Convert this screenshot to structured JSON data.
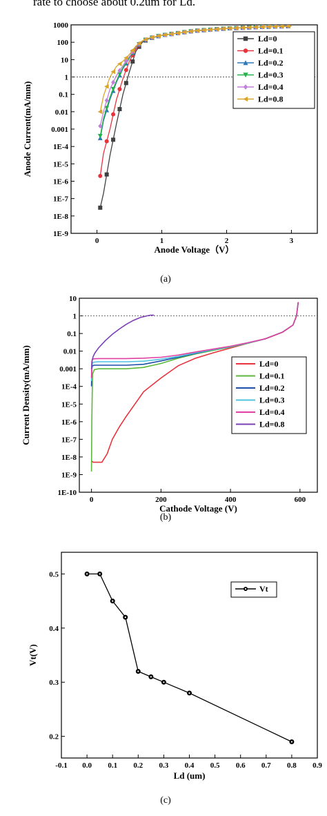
{
  "header_text": "rate to choose about 0.2um for Ld.",
  "captions": [
    "(a)",
    "(b)",
    "(c)"
  ],
  "chart_data": [
    {
      "type": "line",
      "xlabel": "Anode Voltage（V）",
      "ylabel": "Anode Current(mA/mm)",
      "xlim": [
        -0.4,
        3.4
      ],
      "ylim_log10": [
        -9,
        3
      ],
      "x_ticks": [
        0,
        1,
        2,
        3
      ],
      "x_tick_labels": [
        "0",
        "1",
        "2",
        "3"
      ],
      "y_ticks_log10": [
        3,
        2,
        1,
        0,
        -1,
        -2,
        -3,
        -4,
        -5,
        -6,
        -7,
        -8,
        -9
      ],
      "y_tick_labels": [
        "1000",
        "100",
        "10",
        "1",
        "0.1",
        "0.01",
        "0.001",
        "1E-4",
        "1E-5",
        "1E-6",
        "1E-7",
        "1E-8",
        "1E-9"
      ],
      "reference_line_y": 1,
      "legend_position": "right",
      "marker_step": 0.1,
      "series": [
        {
          "name": "Ld=0",
          "color": "#404040",
          "marker": "square",
          "x": [
            0.05,
            0.1,
            0.2,
            0.3,
            0.4,
            0.5,
            0.6,
            0.7,
            0.8,
            1,
            1.5,
            2,
            2.5,
            3
          ],
          "y": [
            3e-08,
            2e-07,
            3e-05,
            0.002,
            0.1,
            2,
            30,
            100,
            160,
            250,
            450,
            620,
            750,
            850
          ]
        },
        {
          "name": "Ld=0.1",
          "color": "#e8323c",
          "marker": "circle",
          "x": [
            0.05,
            0.1,
            0.2,
            0.3,
            0.4,
            0.5,
            0.6,
            0.7,
            0.8,
            1,
            1.5,
            2,
            2.5,
            3
          ],
          "y": [
            2e-06,
            4e-05,
            0.001,
            0.05,
            0.8,
            8,
            40,
            110,
            170,
            250,
            450,
            620,
            750,
            850
          ]
        },
        {
          "name": "Ld=0.2",
          "color": "#2f7ab8",
          "marker": "triangle-up",
          "x": [
            0.05,
            0.1,
            0.2,
            0.3,
            0.4,
            0.5,
            0.6,
            0.7,
            0.8,
            1,
            1.5,
            2,
            2.5,
            3
          ],
          "y": [
            0.0003,
            0.003,
            0.05,
            0.5,
            3,
            12,
            50,
            115,
            170,
            250,
            450,
            620,
            750,
            850
          ]
        },
        {
          "name": "Ld=0.3",
          "color": "#25b24a",
          "marker": "triangle-down",
          "x": [
            0.05,
            0.1,
            0.2,
            0.3,
            0.4,
            0.5,
            0.6,
            0.7,
            0.8,
            1,
            1.5,
            2,
            2.5,
            3
          ],
          "y": [
            0.0004,
            0.004,
            0.07,
            0.6,
            3.5,
            13,
            52,
            115,
            170,
            250,
            450,
            620,
            750,
            850
          ]
        },
        {
          "name": "Ld=0.4",
          "color": "#c27fd8",
          "marker": "diamond",
          "x": [
            0.05,
            0.1,
            0.2,
            0.3,
            0.4,
            0.5,
            0.6,
            0.7,
            0.8,
            1,
            1.5,
            2,
            2.5,
            3
          ],
          "y": [
            0.0015,
            0.01,
            0.2,
            1.2,
            4.5,
            15,
            55,
            118,
            172,
            250,
            450,
            620,
            750,
            850
          ]
        },
        {
          "name": "Ld=0.8",
          "color": "#d9a52a",
          "marker": "triangle-left",
          "x": [
            0.05,
            0.1,
            0.2,
            0.3,
            0.4,
            0.5,
            0.6,
            0.7,
            0.8,
            1,
            1.5,
            2,
            2.5,
            3
          ],
          "y": [
            0.01,
            0.08,
            1,
            4,
            8,
            20,
            60,
            120,
            175,
            250,
            450,
            620,
            750,
            850
          ]
        }
      ]
    },
    {
      "type": "line",
      "xlabel": "Cathode Voltage (V)",
      "ylabel": "Current Density(mA/mm)",
      "xlim": [
        -35,
        650
      ],
      "ylim_log10": [
        -10,
        1
      ],
      "x_ticks": [
        0,
        200,
        400,
        600
      ],
      "x_tick_labels": [
        "0",
        "200",
        "400",
        "600"
      ],
      "y_ticks_log10": [
        1,
        0,
        -1,
        -2,
        -3,
        -4,
        -5,
        -6,
        -7,
        -8,
        -9,
        -10
      ],
      "y_tick_labels": [
        "10",
        "1",
        "0.1",
        "0.01",
        "0.001",
        "1E-4",
        "1E-5",
        "1E-6",
        "1E-7",
        "1E-8",
        "1E-9",
        "1E-10"
      ],
      "reference_line_y": 1,
      "legend_position": "right",
      "series": [
        {
          "name": "Ld=0",
          "color": "#e8323c",
          "x": [
            0,
            5,
            15,
            30,
            45,
            60,
            80,
            100,
            150,
            200,
            250,
            300,
            350,
            400,
            450,
            500,
            550,
            580,
            590,
            595
          ],
          "y": [
            6e-09,
            5e-09,
            5e-09,
            5e-09,
            1.5e-08,
            1e-07,
            5e-07,
            2e-06,
            5e-05,
            0.0003,
            0.0015,
            0.004,
            0.008,
            0.015,
            0.028,
            0.05,
            0.12,
            0.3,
            1,
            6
          ]
        },
        {
          "name": "Ld=0.1",
          "color": "#5cb83a",
          "x": [
            0,
            1,
            3,
            8,
            20,
            50,
            100,
            150,
            200,
            250,
            300,
            350,
            400,
            450,
            500,
            550,
            580,
            590,
            595
          ],
          "y": [
            1.5e-09,
            1e-06,
            0.0005,
            0.0009,
            0.001,
            0.001,
            0.001,
            0.0012,
            0.002,
            0.004,
            0.007,
            0.011,
            0.017,
            0.028,
            0.05,
            0.12,
            0.3,
            1,
            6
          ]
        },
        {
          "name": "Ld=0.2",
          "color": "#1f4fa8",
          "x": [
            0,
            1,
            3,
            8,
            20,
            50,
            100,
            150,
            200,
            250,
            300,
            350,
            400,
            450,
            500,
            550,
            580,
            590,
            595
          ],
          "y": [
            0.0001,
            0.001,
            0.0015,
            0.0016,
            0.0016,
            0.0016,
            0.0016,
            0.0018,
            0.0028,
            0.0045,
            0.0075,
            0.012,
            0.018,
            0.029,
            0.05,
            0.12,
            0.3,
            1,
            6
          ]
        },
        {
          "name": "Ld=0.3",
          "color": "#4fc3e0",
          "x": [
            0,
            1,
            3,
            8,
            20,
            50,
            100,
            150,
            200,
            250,
            300,
            350,
            400,
            450,
            500,
            550,
            580,
            590,
            595
          ],
          "y": [
            0.0002,
            0.0015,
            0.0022,
            0.0024,
            0.0025,
            0.0025,
            0.0025,
            0.0027,
            0.0035,
            0.005,
            0.008,
            0.012,
            0.018,
            0.029,
            0.05,
            0.12,
            0.3,
            1,
            6
          ]
        },
        {
          "name": "Ld=0.4",
          "color": "#e0409f",
          "x": [
            0,
            1,
            3,
            8,
            20,
            50,
            100,
            150,
            200,
            250,
            300,
            350,
            400,
            450,
            500,
            550,
            580,
            590,
            595
          ],
          "y": [
            0.0003,
            0.0025,
            0.0035,
            0.0037,
            0.0038,
            0.0038,
            0.0038,
            0.004,
            0.0045,
            0.006,
            0.009,
            0.013,
            0.019,
            0.03,
            0.05,
            0.12,
            0.3,
            1,
            6
          ]
        },
        {
          "name": "Ld=0.8",
          "color": "#7b3fb5",
          "x": [
            0,
            2,
            5,
            10,
            20,
            40,
            60,
            80,
            100,
            120,
            140,
            160,
            170,
            180
          ],
          "y": [
            0.001,
            0.003,
            0.005,
            0.008,
            0.015,
            0.04,
            0.09,
            0.18,
            0.33,
            0.55,
            0.8,
            1.0,
            1.1,
            1.1
          ]
        }
      ]
    },
    {
      "type": "line",
      "xlabel": "Ld (um)",
      "ylabel": "Vt(V)",
      "xlim": [
        -0.1,
        0.9
      ],
      "ylim": [
        0.16,
        0.54
      ],
      "x_ticks": [
        -0.1,
        0,
        0.1,
        0.2,
        0.3,
        0.4,
        0.5,
        0.6,
        0.7,
        0.8,
        0.9
      ],
      "x_tick_labels": [
        "-0.1",
        "0.0",
        "0.1",
        "0.2",
        "0.3",
        "0.4",
        "0.5",
        "0.6",
        "0.7",
        "0.8",
        "0.9"
      ],
      "y_ticks": [
        0.2,
        0.3,
        0.4,
        0.5
      ],
      "y_tick_labels": [
        "0.2",
        "0.3",
        "0.4",
        "0.5"
      ],
      "legend_position": "top-right",
      "series": [
        {
          "name": "Vt",
          "color": "#000000",
          "marker": "circle",
          "x": [
            0,
            0.05,
            0.1,
            0.15,
            0.2,
            0.25,
            0.3,
            0.4,
            0.8
          ],
          "y": [
            0.5,
            0.5,
            0.45,
            0.42,
            0.32,
            0.31,
            0.3,
            0.28,
            0.19
          ]
        }
      ]
    }
  ]
}
